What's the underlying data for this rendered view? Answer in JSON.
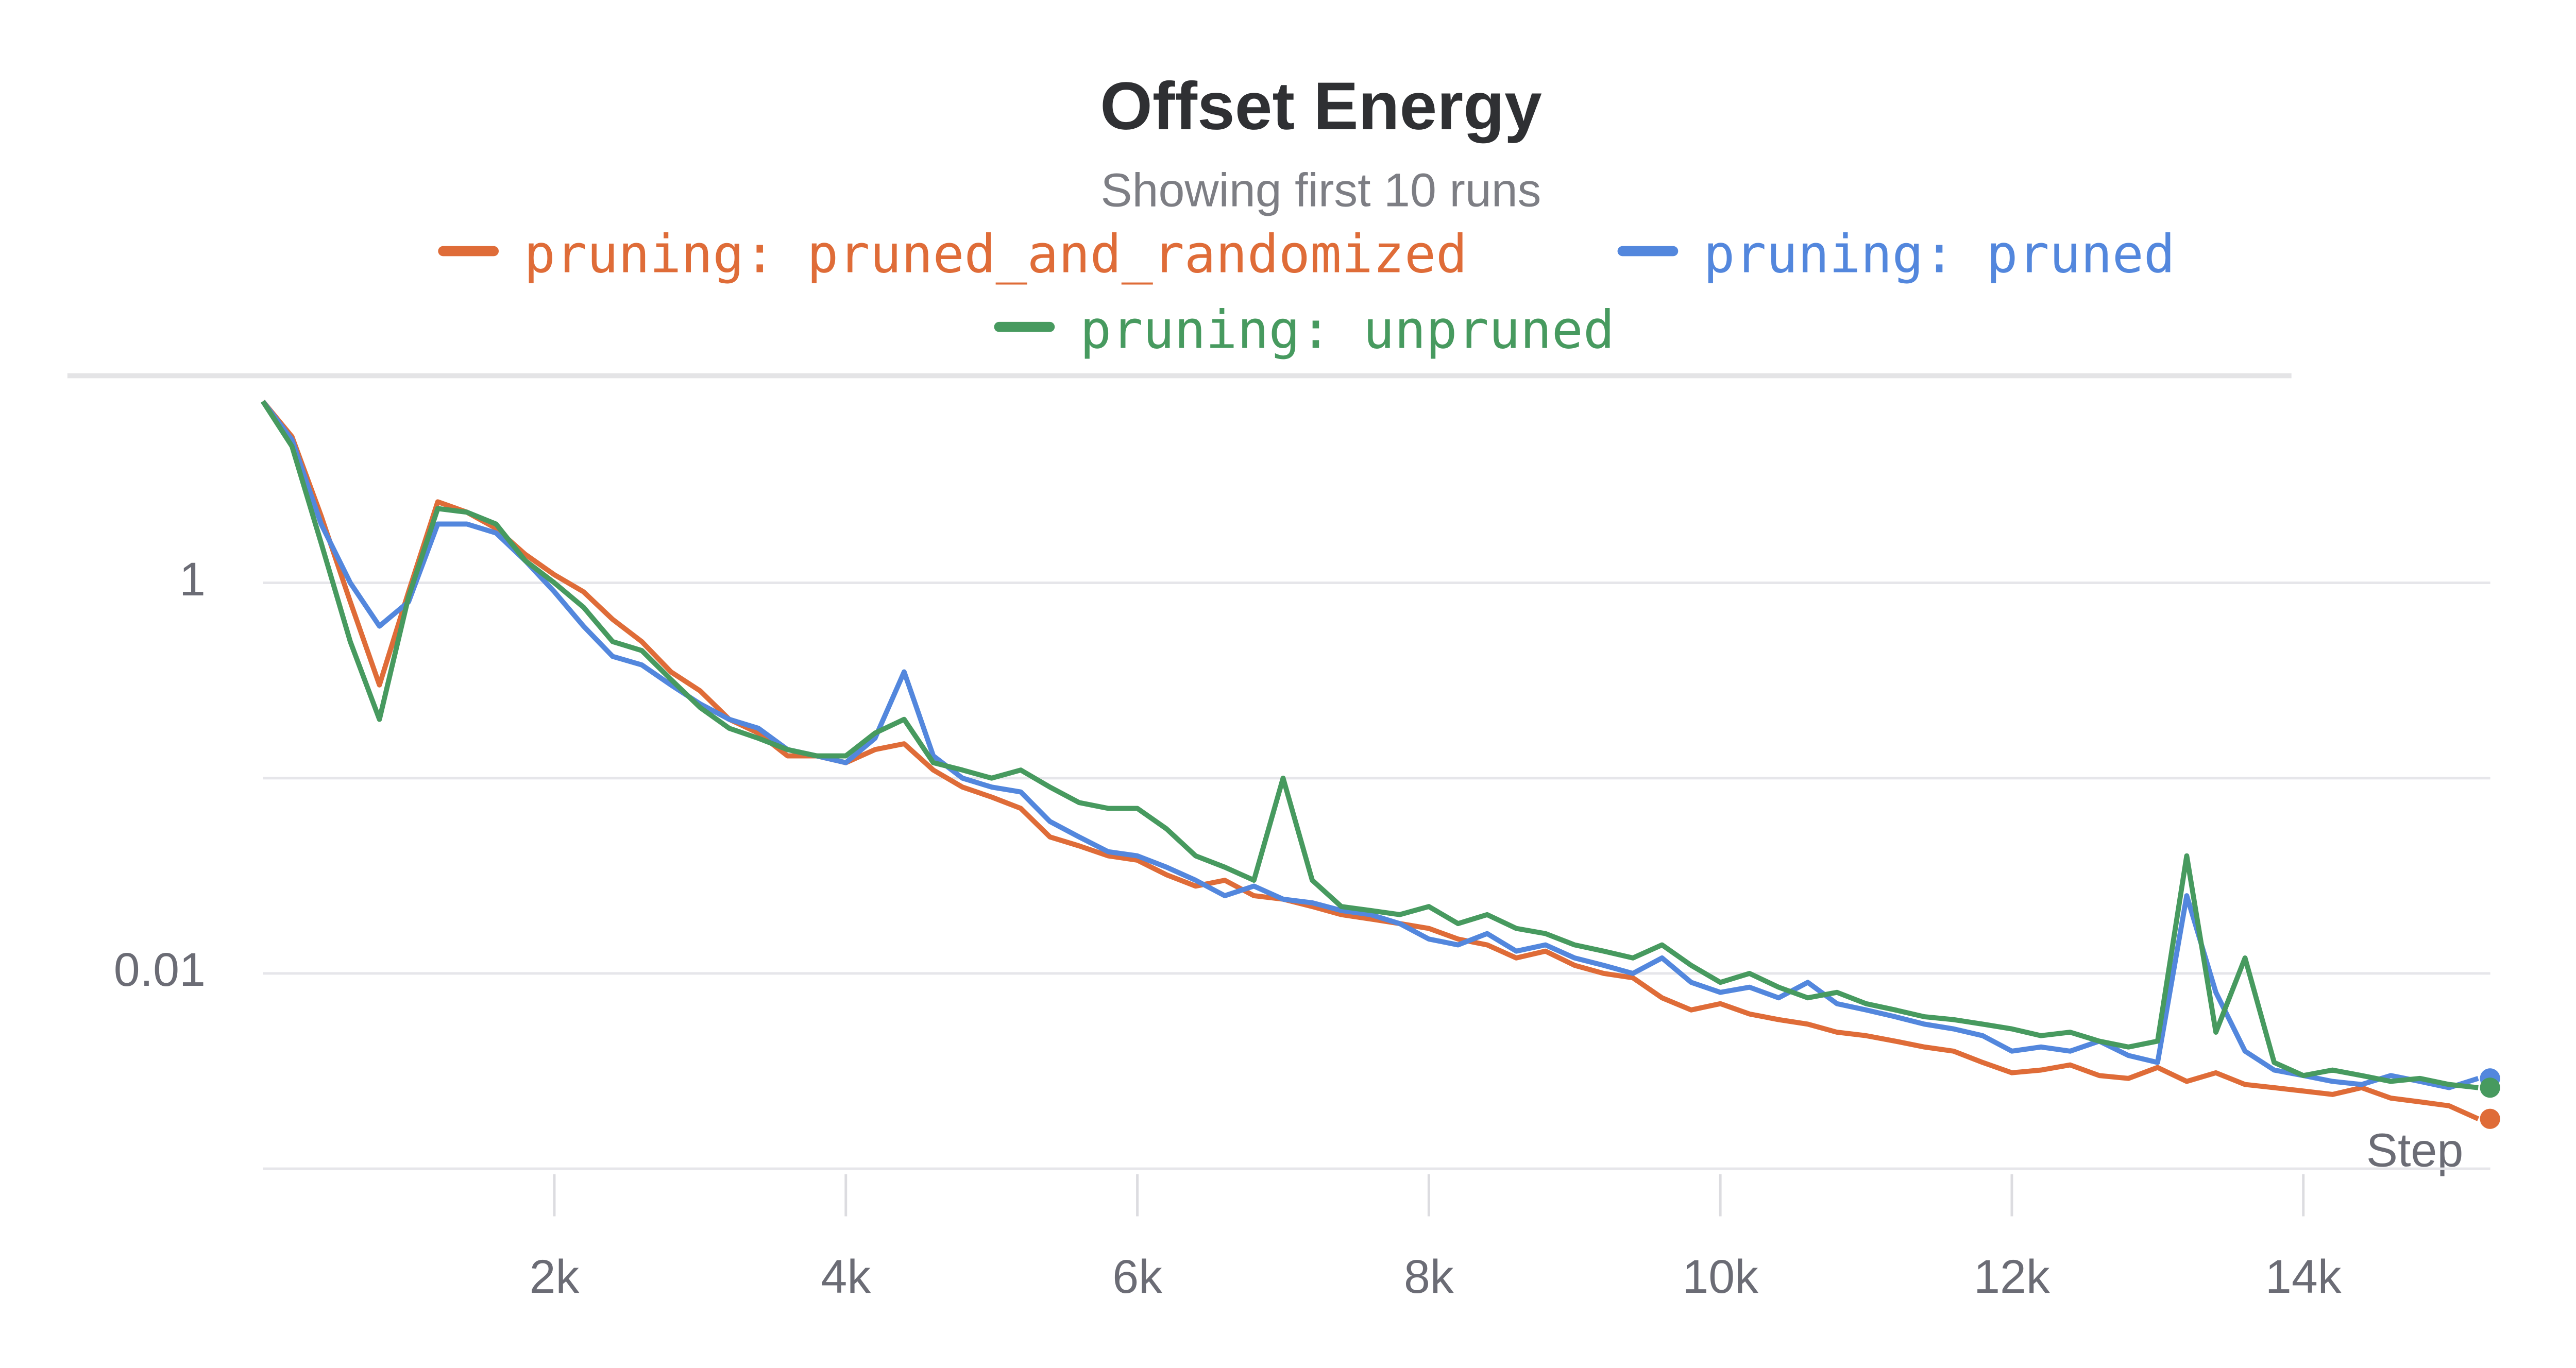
{
  "chart_data": {
    "type": "line",
    "title": "Offset Energy",
    "subtitle": "Showing first 10 runs",
    "x_label": "Step",
    "log_y": true,
    "grid": true,
    "x": [
      0,
      200,
      400,
      600,
      800,
      1000,
      1200,
      1400,
      1600,
      1800,
      2000,
      2200,
      2400,
      2600,
      2800,
      3000,
      3200,
      3400,
      3600,
      3800,
      4000,
      4200,
      4400,
      4600,
      4800,
      5000,
      5200,
      5400,
      5600,
      5800,
      6000,
      6200,
      6400,
      6600,
      6800,
      7000,
      7200,
      7400,
      7600,
      7800,
      8000,
      8200,
      8400,
      8600,
      8800,
      9000,
      9200,
      9400,
      9600,
      9800,
      10000,
      10200,
      10400,
      10600,
      10800,
      11000,
      11200,
      11400,
      11600,
      11800,
      12000,
      12200,
      12400,
      12600,
      12800,
      13000,
      13200,
      13400,
      13600,
      13800,
      14000,
      14200,
      14400,
      14600,
      14800,
      15000,
      15200
    ],
    "series": [
      {
        "name": "pruning: pruned_and_randomized",
        "color": "#df6c38",
        "values": [
          8.5,
          5.6,
          2.2,
          0.8,
          0.3,
          0.9,
          2.6,
          2.3,
          1.9,
          1.4,
          1.1,
          0.9,
          0.65,
          0.5,
          0.35,
          0.28,
          0.2,
          0.17,
          0.13,
          0.13,
          0.12,
          0.14,
          0.15,
          0.11,
          0.09,
          0.08,
          0.07,
          0.05,
          0.045,
          0.04,
          0.038,
          0.032,
          0.028,
          0.03,
          0.025,
          0.024,
          0.022,
          0.02,
          0.019,
          0.018,
          0.017,
          0.015,
          0.014,
          0.012,
          0.013,
          0.011,
          0.01,
          0.0095,
          0.0075,
          0.0065,
          0.007,
          0.0062,
          0.0058,
          0.0055,
          0.005,
          0.0048,
          0.0045,
          0.0042,
          0.004,
          0.0035,
          0.0031,
          0.0032,
          0.0034,
          0.003,
          0.0029,
          0.0033,
          0.0028,
          0.0031,
          0.0027,
          0.0026,
          0.0025,
          0.0024,
          0.0026,
          0.0023,
          0.0022,
          0.0021,
          0.0018
        ]
      },
      {
        "name": "pruning: pruned",
        "color": "#5387dd",
        "values": [
          8.5,
          5.4,
          2.0,
          1.0,
          0.6,
          0.8,
          2.0,
          2.0,
          1.8,
          1.3,
          0.9,
          0.6,
          0.42,
          0.38,
          0.3,
          0.24,
          0.2,
          0.18,
          0.14,
          0.13,
          0.12,
          0.16,
          0.35,
          0.13,
          0.1,
          0.09,
          0.085,
          0.06,
          0.05,
          0.042,
          0.04,
          0.035,
          0.03,
          0.025,
          0.028,
          0.024,
          0.023,
          0.021,
          0.02,
          0.018,
          0.015,
          0.014,
          0.016,
          0.013,
          0.014,
          0.012,
          0.011,
          0.01,
          0.012,
          0.009,
          0.008,
          0.0085,
          0.0075,
          0.009,
          0.007,
          0.0065,
          0.006,
          0.0055,
          0.0052,
          0.0048,
          0.004,
          0.0042,
          0.004,
          0.0045,
          0.0038,
          0.0035,
          0.025,
          0.008,
          0.004,
          0.0032,
          0.003,
          0.0028,
          0.0027,
          0.003,
          0.0028,
          0.0026,
          0.0029
        ]
      },
      {
        "name": "pruning: unpruned",
        "color": "#479a5f",
        "values": [
          8.5,
          5.0,
          1.6,
          0.5,
          0.2,
          0.85,
          2.4,
          2.3,
          2.0,
          1.3,
          1.0,
          0.75,
          0.5,
          0.45,
          0.32,
          0.23,
          0.18,
          0.16,
          0.14,
          0.13,
          0.13,
          0.17,
          0.2,
          0.12,
          0.11,
          0.1,
          0.11,
          0.09,
          0.075,
          0.07,
          0.07,
          0.055,
          0.04,
          0.035,
          0.03,
          0.1,
          0.03,
          0.022,
          0.021,
          0.02,
          0.022,
          0.018,
          0.02,
          0.017,
          0.016,
          0.014,
          0.013,
          0.012,
          0.014,
          0.011,
          0.009,
          0.01,
          0.0085,
          0.0075,
          0.008,
          0.007,
          0.0065,
          0.006,
          0.0058,
          0.0055,
          0.0052,
          0.0048,
          0.005,
          0.0045,
          0.0042,
          0.0045,
          0.04,
          0.005,
          0.012,
          0.0035,
          0.003,
          0.0032,
          0.003,
          0.0028,
          0.0029,
          0.0027,
          0.0026
        ]
      }
    ],
    "xlim": [
      0,
      15300
    ],
    "xticks": [
      {
        "value": 2000,
        "label": "2k"
      },
      {
        "value": 4000,
        "label": "4k"
      },
      {
        "value": 6000,
        "label": "6k"
      },
      {
        "value": 8000,
        "label": "8k"
      },
      {
        "value": 10000,
        "label": "10k"
      },
      {
        "value": 12000,
        "label": "12k"
      },
      {
        "value": 14000,
        "label": "14k"
      }
    ],
    "ylim": [
      0.0008,
      10
    ],
    "yticks": [
      0.01,
      1
    ],
    "yminor_grid": [
      0.001,
      0.1
    ]
  }
}
